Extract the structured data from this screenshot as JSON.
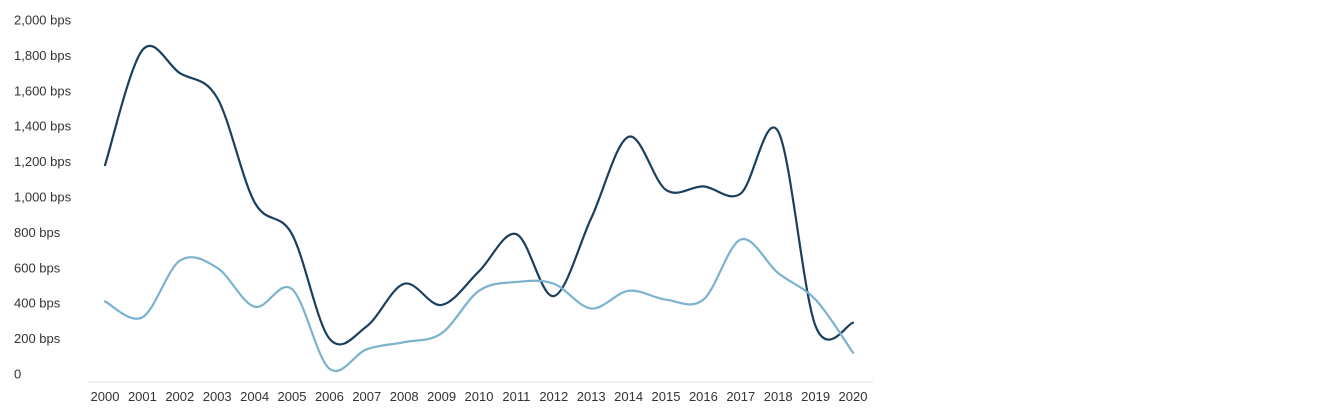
{
  "chart_data": {
    "type": "line",
    "title": "",
    "xlabel": "",
    "ylabel": "",
    "x": [
      "2000",
      "2001",
      "2002",
      "2003",
      "2004",
      "2005",
      "2006",
      "2007",
      "2008",
      "2009",
      "2010",
      "2011",
      "2012",
      "2013",
      "2014",
      "2015",
      "2016",
      "2017",
      "2018",
      "2019",
      "2020"
    ],
    "ylim": [
      0,
      2000
    ],
    "y_ticks": [
      {
        "value": 0,
        "label": "0"
      },
      {
        "value": 200,
        "label": "200 bps"
      },
      {
        "value": 400,
        "label": "400 bps"
      },
      {
        "value": 600,
        "label": "600 bps"
      },
      {
        "value": 800,
        "label": "800 bps"
      },
      {
        "value": 1000,
        "label": "1,000 bps"
      },
      {
        "value": 1200,
        "label": "1,200 bps"
      },
      {
        "value": 1400,
        "label": "1,400 bps"
      },
      {
        "value": 1600,
        "label": "1,600 bps"
      },
      {
        "value": 1800,
        "label": "1,800 bps"
      },
      {
        "value": 2000,
        "label": "2,000 bps"
      }
    ],
    "grid": false,
    "legend": "none",
    "series": [
      {
        "color": "#1b3f5e",
        "values": [
          1180,
          1830,
          1700,
          1560,
          970,
          790,
          200,
          270,
          510,
          390,
          580,
          790,
          440,
          880,
          1340,
          1040,
          1060,
          1020,
          1370,
          270,
          290
        ]
      },
      {
        "color": "#7bb2cf",
        "values": [
          410,
          320,
          640,
          600,
          380,
          480,
          30,
          140,
          180,
          230,
          470,
          520,
          510,
          370,
          470,
          420,
          420,
          760,
          570,
          420,
          120
        ]
      }
    ]
  }
}
